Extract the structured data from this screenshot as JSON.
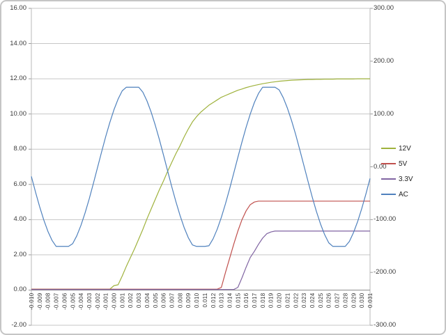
{
  "chart_data": {
    "type": "line",
    "title": "",
    "xlabel": "",
    "ylabel_left": "",
    "ylabel_right": "",
    "grid": "horizontal-only",
    "legend_position": "right",
    "left_axis": {
      "min": -2,
      "max": 16,
      "tick_step": 2,
      "tick_labels": [
        "16.00",
        "14.00",
        "12.00",
        "10.00",
        "8.00",
        "6.00",
        "4.00",
        "2.00",
        "0.00",
        "-2.00"
      ]
    },
    "right_axis": {
      "min": -300,
      "max": 300,
      "tick_step": 100,
      "tick_labels": [
        "300.00",
        "200.00",
        "100.00",
        "0.00",
        "-100.00",
        "-200.00",
        "-300.00"
      ]
    },
    "x_axis": {
      "labels": [
        "-0.010",
        "-0.009",
        "-0.008",
        "-0.007",
        "-0.006",
        "-0.005",
        "-0.004",
        "-0.003",
        "-0.002",
        "-0.001",
        "-0.000",
        "0.001",
        "0.002",
        "0.003",
        "0.004",
        "0.005",
        "0.006",
        "0.007",
        "0.008",
        "0.009",
        "0.010",
        "0.011",
        "0.012",
        "0.013",
        "0.014",
        "0.015",
        "0.016",
        "0.017",
        "0.018",
        "0.019",
        "0.020",
        "0.021",
        "0.022",
        "0.023",
        "0.024",
        "0.025",
        "0.026",
        "0.027",
        "0.028",
        "0.029",
        "0.030",
        "0.031"
      ]
    },
    "x": [
      -0.01,
      -0.0095,
      -0.009,
      -0.0085,
      -0.008,
      -0.0075,
      -0.007,
      -0.0065,
      -0.006,
      -0.0055,
      -0.005,
      -0.0045,
      -0.004,
      -0.0035,
      -0.003,
      -0.0025,
      -0.002,
      -0.0015,
      -0.001,
      -0.0005,
      0.0,
      0.0005,
      0.001,
      0.0015,
      0.002,
      0.0025,
      0.003,
      0.0035,
      0.004,
      0.0045,
      0.005,
      0.0055,
      0.006,
      0.0065,
      0.007,
      0.0075,
      0.008,
      0.0085,
      0.009,
      0.0095,
      0.01,
      0.0105,
      0.011,
      0.0115,
      0.012,
      0.0125,
      0.013,
      0.0135,
      0.014,
      0.0145,
      0.015,
      0.0155,
      0.016,
      0.0165,
      0.017,
      0.0175,
      0.018,
      0.0185,
      0.019,
      0.0195,
      0.02,
      0.0205,
      0.021,
      0.0215,
      0.022,
      0.0225,
      0.023,
      0.0235,
      0.024,
      0.0245,
      0.025,
      0.0255,
      0.026,
      0.0265,
      0.027,
      0.0275,
      0.028,
      0.0285,
      0.029,
      0.0295,
      0.03,
      0.0305,
      0.031
    ],
    "series": [
      {
        "name": "12V",
        "axis": "left",
        "color": "#9fb23c",
        "values": [
          0.05,
          0.05,
          0.05,
          0.05,
          0.05,
          0.05,
          0.05,
          0.05,
          0.05,
          0.05,
          0.05,
          0.05,
          0.05,
          0.05,
          0.05,
          0.05,
          0.05,
          0.05,
          0.05,
          0.05,
          0.25,
          0.3,
          0.8,
          1.35,
          1.85,
          2.35,
          2.9,
          3.45,
          4.05,
          4.6,
          5.15,
          5.7,
          6.2,
          6.75,
          7.25,
          7.75,
          8.2,
          8.7,
          9.15,
          9.55,
          9.85,
          10.1,
          10.3,
          10.5,
          10.65,
          10.8,
          10.95,
          11.05,
          11.15,
          11.25,
          11.35,
          11.42,
          11.5,
          11.56,
          11.62,
          11.67,
          11.72,
          11.76,
          11.8,
          11.83,
          11.86,
          11.88,
          11.9,
          11.92,
          11.93,
          11.94,
          11.95,
          11.96,
          11.96,
          11.97,
          11.97,
          11.98,
          11.98,
          11.98,
          11.99,
          11.99,
          11.99,
          11.99,
          11.99,
          12.0,
          12.0,
          12.0,
          12.0
        ]
      },
      {
        "name": "5V",
        "axis": "left",
        "color": "#c0504d",
        "values": [
          0.05,
          0.05,
          0.05,
          0.05,
          0.05,
          0.05,
          0.05,
          0.05,
          0.05,
          0.05,
          0.05,
          0.05,
          0.05,
          0.05,
          0.05,
          0.05,
          0.05,
          0.05,
          0.05,
          0.05,
          0.05,
          0.05,
          0.05,
          0.05,
          0.05,
          0.05,
          0.05,
          0.05,
          0.05,
          0.05,
          0.05,
          0.05,
          0.05,
          0.05,
          0.05,
          0.05,
          0.05,
          0.05,
          0.05,
          0.05,
          0.05,
          0.05,
          0.05,
          0.05,
          0.05,
          0.05,
          0.15,
          1.0,
          1.8,
          2.6,
          3.35,
          4.0,
          4.5,
          4.85,
          5.0,
          5.05,
          5.05,
          5.05,
          5.05,
          5.05,
          5.05,
          5.05,
          5.05,
          5.05,
          5.05,
          5.05,
          5.05,
          5.05,
          5.05,
          5.05,
          5.05,
          5.05,
          5.05,
          5.05,
          5.05,
          5.05,
          5.05,
          5.05,
          5.05,
          5.05,
          5.05,
          5.05,
          5.05
        ]
      },
      {
        "name": "3.3V",
        "axis": "left",
        "color": "#8064a2",
        "values": [
          0.03,
          0.03,
          0.03,
          0.03,
          0.03,
          0.03,
          0.03,
          0.03,
          0.03,
          0.03,
          0.03,
          0.03,
          0.03,
          0.03,
          0.03,
          0.03,
          0.03,
          0.03,
          0.03,
          0.03,
          0.03,
          0.03,
          0.03,
          0.03,
          0.03,
          0.03,
          0.03,
          0.03,
          0.03,
          0.03,
          0.03,
          0.03,
          0.03,
          0.03,
          0.03,
          0.03,
          0.03,
          0.03,
          0.03,
          0.03,
          0.03,
          0.03,
          0.03,
          0.03,
          0.03,
          0.03,
          0.03,
          0.03,
          0.03,
          0.03,
          0.15,
          0.7,
          1.3,
          1.85,
          2.2,
          2.6,
          2.95,
          3.2,
          3.3,
          3.35,
          3.35,
          3.35,
          3.35,
          3.35,
          3.35,
          3.35,
          3.35,
          3.35,
          3.35,
          3.35,
          3.35,
          3.35,
          3.35,
          3.35,
          3.35,
          3.35,
          3.35,
          3.35,
          3.35,
          3.35,
          3.35,
          3.35,
          3.35
        ]
      },
      {
        "name": "AC",
        "axis": "right",
        "color": "#4f81bd",
        "values": [
          -18.1,
          -47.6,
          -75.4,
          -100.5,
          -122.1,
          -139.2,
          -150.7,
          -150.7,
          -150.7,
          -150.7,
          -145.6,
          -130.6,
          -111.0,
          -87.5,
          -61.0,
          -32.0,
          -2.0,
          28.0,
          57.2,
          84.0,
          108.1,
          128.2,
          143.9,
          150.7,
          150.7,
          150.7,
          150.7,
          141.2,
          124.6,
          103.6,
          78.8,
          51.5,
          22.0,
          -8.0,
          -37.9,
          -66.1,
          -92.2,
          -115.2,
          -134.2,
          -148.0,
          -150.7,
          -150.7,
          -150.7,
          -149.5,
          -136.4,
          -118.1,
          -95.7,
          -69.9,
          -41.8,
          -12.0,
          17.9,
          47.2,
          75.0,
          100.0,
          121.8,
          139.0,
          150.7,
          150.7,
          150.7,
          150.7,
          145.6,
          130.6,
          110.9,
          87.4,
          61.0,
          31.9,
          2.0,
          -28.0,
          -57.2,
          -84.1,
          -108.1,
          -128.3,
          -143.9,
          -150.7,
          -150.7,
          -150.7,
          -150.7,
          -141.2,
          -124.5,
          -103.6,
          -78.8,
          -51.5,
          -22.0
        ]
      }
    ],
    "legend_labels": [
      "12V",
      "5V",
      "3.3V",
      "AC"
    ]
  },
  "style_colors": {
    "gridline": "#c6c6c6",
    "plot_border": "#b9b9b9",
    "zero_axis": "#8c8c8c",
    "tick": "#9a9a9a",
    "axis_text": "#3a3a3a",
    "x_axis_text": "#333333",
    "frame_border": "#c5c5c5"
  }
}
